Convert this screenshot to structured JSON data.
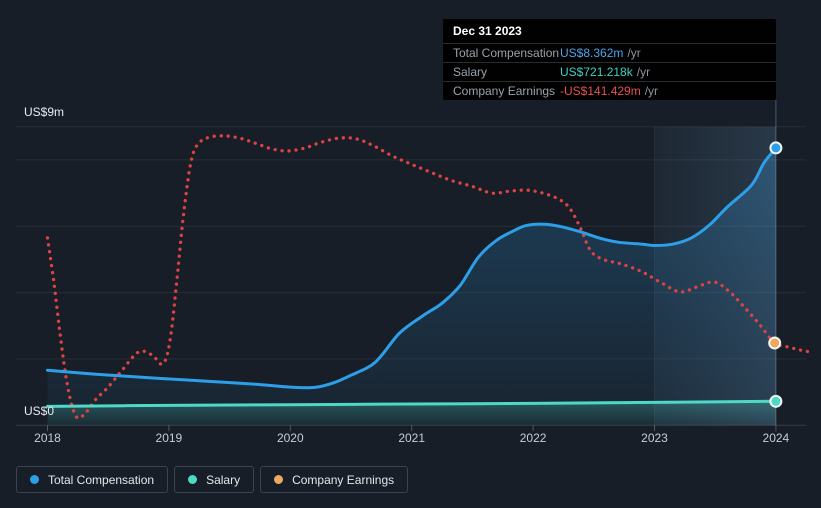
{
  "tooltip": {
    "date": "Dec 31 2023",
    "rows": [
      {
        "label": "Total Compensation",
        "value": "US$8.362m",
        "suffix": "/yr",
        "value_color": "#4da5ec"
      },
      {
        "label": "Salary",
        "value": "US$721.218k",
        "suffix": "/yr",
        "value_color": "#3fd1c3"
      },
      {
        "label": "Company Earnings",
        "value": "-US$141.429m",
        "suffix": "/yr",
        "value_color": "#e55353"
      }
    ]
  },
  "axis": {
    "y_top_label": "US$9m",
    "y_bottom_label": "US$0",
    "x_tick_labels": [
      "2018",
      "2019",
      "2020",
      "2021",
      "2022",
      "2023",
      "2024"
    ]
  },
  "legend": [
    {
      "label": "Total Compensation",
      "color": "#2d9fe8"
    },
    {
      "label": "Salary",
      "color": "#4fd8c6"
    },
    {
      "label": "Company Earnings",
      "color": "#eba95f"
    }
  ],
  "colors": {
    "background": "#171e27",
    "gridline": "rgba(255,255,255,0.07)",
    "axis_line": "rgba(255,255,255,0.14)",
    "blue_line": "#2d9fe8",
    "teal_line": "#4fd8c6",
    "red_dotted_line": "#dd4343",
    "orange_marker": "#eba95f",
    "highlight_band": "rgba(115,170,215,0.12)"
  },
  "chart_data": {
    "type": "line",
    "title": "",
    "xlabel": "",
    "ylabel": "",
    "x_axis": {
      "tick_years": [
        2018,
        2019,
        2020,
        2021,
        2022,
        2023,
        2024
      ]
    },
    "y_axis": {
      "unit": "US$ millions",
      "min": 0,
      "max": 9,
      "top_label": "US$9m",
      "bottom_label": "US$0",
      "gridline_values": [
        2,
        4,
        6,
        8,
        9
      ]
    },
    "highlight_band": {
      "from_year": 2023,
      "to_year": 2024
    },
    "cursor_year": 2024,
    "legend_position": "bottom-left",
    "series": [
      {
        "name": "Total Compensation",
        "color": "#2d9fe8",
        "line_style": "solid",
        "area_fill": true,
        "end_marker": true,
        "marker_color": "#2d9fe8",
        "points": [
          [
            2018.0,
            1.66
          ],
          [
            2018.4,
            1.54
          ],
          [
            2018.9,
            1.42
          ],
          [
            2019.3,
            1.33
          ],
          [
            2019.7,
            1.24
          ],
          [
            2020.0,
            1.15
          ],
          [
            2020.2,
            1.14
          ],
          [
            2020.35,
            1.27
          ],
          [
            2020.5,
            1.51
          ],
          [
            2020.7,
            1.9
          ],
          [
            2020.9,
            2.78
          ],
          [
            2021.1,
            3.32
          ],
          [
            2021.25,
            3.68
          ],
          [
            2021.4,
            4.22
          ],
          [
            2021.55,
            5.07
          ],
          [
            2021.7,
            5.58
          ],
          [
            2021.85,
            5.88
          ],
          [
            2021.95,
            6.03
          ],
          [
            2022.1,
            6.06
          ],
          [
            2022.25,
            5.97
          ],
          [
            2022.4,
            5.82
          ],
          [
            2022.55,
            5.64
          ],
          [
            2022.7,
            5.52
          ],
          [
            2022.9,
            5.46
          ],
          [
            2023.0,
            5.42
          ],
          [
            2023.15,
            5.46
          ],
          [
            2023.3,
            5.64
          ],
          [
            2023.45,
            6.03
          ],
          [
            2023.6,
            6.58
          ],
          [
            2023.8,
            7.24
          ],
          [
            2023.9,
            7.9
          ],
          [
            2024.0,
            8.362
          ]
        ]
      },
      {
        "name": "Salary",
        "color": "#4fd8c6",
        "line_style": "solid",
        "area_fill": true,
        "end_marker": true,
        "marker_color": "#4fd8c6",
        "points": [
          [
            2018,
            0.57
          ],
          [
            2019,
            0.6
          ],
          [
            2020,
            0.62
          ],
          [
            2021,
            0.64
          ],
          [
            2022,
            0.66
          ],
          [
            2023,
            0.69
          ],
          [
            2024,
            0.7212
          ]
        ]
      },
      {
        "name": "Company Earnings",
        "color": "#dd4343",
        "line_style": "dotted",
        "area_fill": false,
        "end_marker": true,
        "marker_color": "#eba95f",
        "marker_year": 2023.99,
        "scale_note": "Plotted on its own unlabeled scale; displayed value at Dec 31 2023 = -US$141.429m",
        "points": [
          [
            2018.0,
            5.65
          ],
          [
            2018.05,
            4.38
          ],
          [
            2018.1,
            2.87
          ],
          [
            2018.15,
            1.51
          ],
          [
            2018.2,
            0.61
          ],
          [
            2018.25,
            0.22
          ],
          [
            2018.32,
            0.4
          ],
          [
            2018.4,
            0.79
          ],
          [
            2018.5,
            1.15
          ],
          [
            2018.61,
            1.64
          ],
          [
            2018.75,
            2.21
          ],
          [
            2018.86,
            2.12
          ],
          [
            2018.95,
            1.85
          ],
          [
            2019.01,
            2.57
          ],
          [
            2019.07,
            4.53
          ],
          [
            2019.12,
            6.34
          ],
          [
            2019.18,
            7.91
          ],
          [
            2019.24,
            8.48
          ],
          [
            2019.34,
            8.69
          ],
          [
            2019.48,
            8.72
          ],
          [
            2019.61,
            8.63
          ],
          [
            2019.73,
            8.48
          ],
          [
            2019.85,
            8.33
          ],
          [
            2019.98,
            8.27
          ],
          [
            2020.12,
            8.36
          ],
          [
            2020.26,
            8.54
          ],
          [
            2020.41,
            8.66
          ],
          [
            2020.55,
            8.63
          ],
          [
            2020.69,
            8.42
          ],
          [
            2020.84,
            8.12
          ],
          [
            2020.99,
            7.88
          ],
          [
            2021.15,
            7.64
          ],
          [
            2021.32,
            7.39
          ],
          [
            2021.5,
            7.2
          ],
          [
            2021.66,
            7.0
          ],
          [
            2021.81,
            7.06
          ],
          [
            2021.95,
            7.09
          ],
          [
            2022.08,
            7.0
          ],
          [
            2022.21,
            6.82
          ],
          [
            2022.3,
            6.55
          ],
          [
            2022.39,
            5.95
          ],
          [
            2022.47,
            5.28
          ],
          [
            2022.57,
            5.01
          ],
          [
            2022.73,
            4.86
          ],
          [
            2022.9,
            4.62
          ],
          [
            2023.06,
            4.29
          ],
          [
            2023.21,
            4.02
          ],
          [
            2023.35,
            4.17
          ],
          [
            2023.49,
            4.32
          ],
          [
            2023.61,
            4.05
          ],
          [
            2023.74,
            3.56
          ],
          [
            2023.87,
            3.02
          ],
          [
            2023.99,
            2.48
          ],
          [
            2024.1,
            2.36
          ],
          [
            2024.2,
            2.27
          ],
          [
            2024.28,
            2.21
          ]
        ]
      }
    ]
  }
}
